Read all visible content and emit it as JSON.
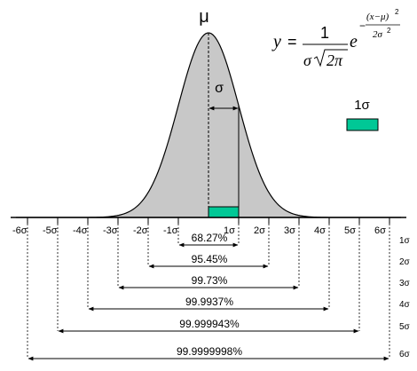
{
  "diagram": {
    "mu_label": "μ",
    "sigma_label": "σ",
    "legend_label": "1σ",
    "formula": {
      "lhs": "y",
      "equals": "=",
      "numerator": "1",
      "denominator_sigma": "σ",
      "denominator_radicand": "2π",
      "base": "e",
      "exp_sign": "−",
      "exp_numerator": "(x−μ)",
      "exp_power": "2",
      "exp_denominator": "2σ",
      "exp_denominator_power": "2"
    },
    "colors": {
      "curve_fill": "#c8c8c8",
      "curve_stroke": "#000000",
      "sigma_box": "#00c896",
      "line": "#000000"
    },
    "ticks": [
      {
        "label": "-6σ",
        "value": -6
      },
      {
        "label": "-5σ",
        "value": -5
      },
      {
        "label": "-4σ",
        "value": -4
      },
      {
        "label": "-3σ",
        "value": -3
      },
      {
        "label": "-2σ",
        "value": -2
      },
      {
        "label": "-1σ",
        "value": -1
      },
      {
        "label": "1σ",
        "value": 1
      },
      {
        "label": "2σ",
        "value": 2
      },
      {
        "label": "3σ",
        "value": 3
      },
      {
        "label": "4σ",
        "value": 4
      },
      {
        "label": "5σ",
        "value": 5
      },
      {
        "label": "6σ",
        "value": 6
      }
    ],
    "ranges": [
      {
        "sigma": 1,
        "percent": "68.27%",
        "row_label": "1σ"
      },
      {
        "sigma": 2,
        "percent": "95.45%",
        "row_label": "2σ"
      },
      {
        "sigma": 3,
        "percent": "99.73%",
        "row_label": "3σ"
      },
      {
        "sigma": 4,
        "percent": "99.9937%",
        "row_label": "4σ"
      },
      {
        "sigma": 5,
        "percent": "99.999943%",
        "row_label": "5σ"
      },
      {
        "sigma": 6,
        "percent": "99.9999998%",
        "row_label": "6σ"
      }
    ]
  }
}
